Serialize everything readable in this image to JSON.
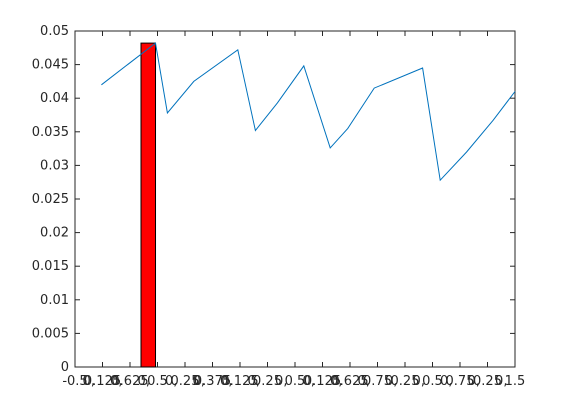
{
  "chart_data": {
    "type": "bar+line",
    "title": "",
    "xlabel": "",
    "ylabel": "",
    "xlim": [
      0,
      1
    ],
    "ylim": [
      0,
      0.05
    ],
    "grid": false,
    "yticks": [
      {
        "value": 0,
        "label": "0"
      },
      {
        "value": 0.005,
        "label": "0.005"
      },
      {
        "value": 0.01,
        "label": "0.01"
      },
      {
        "value": 0.015,
        "label": "0.015"
      },
      {
        "value": 0.02,
        "label": "0.02"
      },
      {
        "value": 0.025,
        "label": "0.025"
      },
      {
        "value": 0.03,
        "label": "0.03"
      },
      {
        "value": 0.035,
        "label": "0.035"
      },
      {
        "value": 0.04,
        "label": "0.04"
      },
      {
        "value": 0.045,
        "label": "0.045"
      },
      {
        "value": 0.05,
        "label": "0.05"
      }
    ],
    "xticks": {
      "positions": [
        0,
        0.0625,
        0.125,
        0.1875,
        0.25,
        0.3125,
        0.375,
        0.4375,
        0.5,
        0.5625,
        0.625,
        0.6875,
        0.75,
        0.8125,
        0.875,
        0.9375,
        1.0
      ],
      "labels": [
        "-0.5",
        "0.125",
        "0.625",
        "0.5",
        "0.25",
        "0.375",
        "0.125",
        "0.25",
        "0.5",
        "0.125",
        "0.625",
        "0.75",
        "0.25",
        "0.5",
        "0.75",
        "0.25",
        "1.5"
      ]
    },
    "xtick_extra_labels": [
      "0,",
      "0,",
      "0,",
      "0,",
      "0,",
      "0,",
      "0,",
      "0,",
      "0,",
      "0,",
      "0,",
      "0,",
      "0,",
      "0,",
      "0,",
      "0,"
    ],
    "bar": {
      "x_start": 0.15,
      "x_end": 0.183,
      "value": 0.0482,
      "color": "#ff0000",
      "edge_color": "#000000"
    },
    "line": {
      "color": "#0072bd",
      "points": [
        [
          0.06,
          0.042
        ],
        [
          0.183,
          0.0482
        ],
        [
          0.21,
          0.0378
        ],
        [
          0.27,
          0.0425
        ],
        [
          0.37,
          0.0472
        ],
        [
          0.41,
          0.0352
        ],
        [
          0.46,
          0.0393
        ],
        [
          0.52,
          0.0448
        ],
        [
          0.58,
          0.0326
        ],
        [
          0.62,
          0.0355
        ],
        [
          0.68,
          0.0415
        ],
        [
          0.79,
          0.0445
        ],
        [
          0.83,
          0.0278
        ],
        [
          0.89,
          0.032
        ],
        [
          0.95,
          0.0367
        ],
        [
          1.0,
          0.041
        ]
      ]
    }
  }
}
